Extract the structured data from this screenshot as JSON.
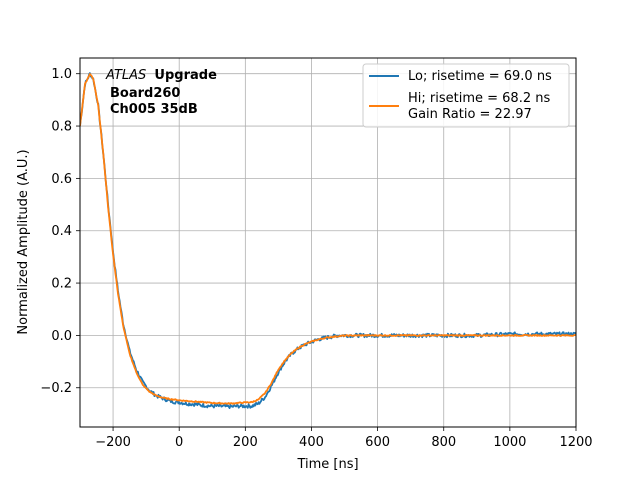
{
  "chart_data": {
    "type": "line",
    "xlabel": "Time [ns]",
    "ylabel": "Normalized Amplitude (A.U.)",
    "xlim": [
      -300,
      1200
    ],
    "ylim": [
      -0.35,
      1.06
    ],
    "grid": true,
    "legend_position": "top-right",
    "x_ticks": [
      -200,
      0,
      200,
      400,
      600,
      800,
      1000,
      1200
    ],
    "x_tick_labels": [
      "−200",
      "0",
      "200",
      "400",
      "600",
      "800",
      "1000",
      "1200"
    ],
    "y_ticks": [
      -0.2,
      0.0,
      0.2,
      0.4,
      0.6,
      0.8,
      1.0
    ],
    "y_tick_labels": [
      "−0.2",
      "0.0",
      "0.2",
      "0.4",
      "0.6",
      "0.8",
      "1.0"
    ],
    "annotation": {
      "line1_italic": "ATLAS",
      "line1_bold": "Upgrade",
      "line2": "Board260",
      "line3": "Ch005 35dB"
    },
    "series": [
      {
        "name": "Lo; risetime = 69.0 ns",
        "color": "#1f77b4",
        "noise": 0.007,
        "x": [
          -300,
          -285,
          -270,
          -260,
          -245,
          -230,
          -215,
          -200,
          -185,
          -170,
          -150,
          -130,
          -110,
          -90,
          -70,
          -50,
          -30,
          -10,
          0,
          20,
          40,
          60,
          80,
          100,
          120,
          140,
          160,
          180,
          200,
          220,
          240,
          260,
          280,
          300,
          320,
          340,
          360,
          380,
          400,
          420,
          440,
          460,
          480,
          500,
          550,
          600,
          700,
          800,
          900,
          1000,
          1100,
          1200
        ],
        "y": [
          0.8,
          0.96,
          1.0,
          0.98,
          0.88,
          0.7,
          0.5,
          0.32,
          0.17,
          0.05,
          -0.06,
          -0.13,
          -0.18,
          -0.21,
          -0.23,
          -0.24,
          -0.25,
          -0.255,
          -0.255,
          -0.26,
          -0.262,
          -0.265,
          -0.268,
          -0.27,
          -0.27,
          -0.272,
          -0.272,
          -0.27,
          -0.27,
          -0.27,
          -0.26,
          -0.235,
          -0.19,
          -0.14,
          -0.1,
          -0.07,
          -0.05,
          -0.035,
          -0.025,
          -0.015,
          -0.01,
          -0.005,
          0.0,
          0.0,
          0.0,
          0.0,
          0.0,
          0.0,
          0.0,
          0.005,
          0.005,
          0.005
        ]
      },
      {
        "name": "Hi; risetime = 68.2 ns\n Gain Ratio = 22.97",
        "color": "#ff7f0e",
        "noise": 0.002,
        "x": [
          -300,
          -285,
          -270,
          -260,
          -245,
          -230,
          -215,
          -200,
          -185,
          -170,
          -150,
          -130,
          -110,
          -90,
          -70,
          -50,
          -30,
          -10,
          0,
          20,
          40,
          60,
          80,
          100,
          120,
          140,
          160,
          180,
          200,
          220,
          240,
          260,
          280,
          300,
          320,
          340,
          360,
          380,
          400,
          420,
          440,
          460,
          480,
          500,
          550,
          600,
          700,
          800,
          900,
          1000,
          1100,
          1200
        ],
        "y": [
          0.8,
          0.96,
          1.0,
          0.98,
          0.88,
          0.7,
          0.49,
          0.31,
          0.16,
          0.04,
          -0.07,
          -0.14,
          -0.19,
          -0.215,
          -0.23,
          -0.238,
          -0.243,
          -0.246,
          -0.248,
          -0.25,
          -0.252,
          -0.254,
          -0.256,
          -0.258,
          -0.259,
          -0.26,
          -0.26,
          -0.258,
          -0.256,
          -0.255,
          -0.245,
          -0.22,
          -0.18,
          -0.13,
          -0.095,
          -0.068,
          -0.048,
          -0.034,
          -0.024,
          -0.016,
          -0.01,
          -0.006,
          -0.003,
          -0.001,
          0.0,
          0.0,
          0.0,
          0.0,
          0.0,
          0.0,
          0.0,
          0.0
        ]
      }
    ]
  }
}
